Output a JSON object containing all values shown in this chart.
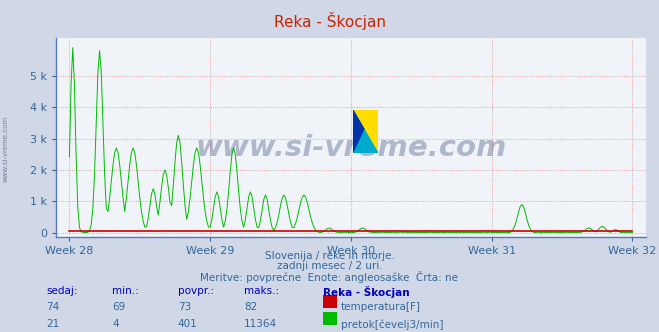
{
  "title": "Reka - Škocjan",
  "bg_color": "#d0d8e8",
  "plot_bg_color": "#f0f4f8",
  "grid_color": "#dd8888",
  "spine_color": "#6688cc",
  "tick_label_color": "#336699",
  "subtitle_lines": [
    "Slovenija / reke in morje.",
    "zadnji mesec / 2 uri.",
    "Meritve: povprečne  Enote: angleosaške  Črta: ne"
  ],
  "footer_headers": [
    "sedaj:",
    "min.:",
    "povpr.:",
    "maks.:",
    "Reka - Škocjan"
  ],
  "footer_row1": [
    "74",
    "69",
    "73",
    "82"
  ],
  "footer_row2": [
    "21",
    "4",
    "401",
    "11364"
  ],
  "footer_label1": "temperatura[F]",
  "footer_label2": "pretok[čevelj3/min]",
  "color_temp": "#cc0000",
  "color_flow": "#00bb00",
  "color_spine": "#5577bb",
  "xlabel_color": "#336699",
  "ylabel_left_color": "#336699",
  "week_labels": [
    "Week 28",
    "Week 29",
    "Week 30",
    "Week 31",
    "Week 32"
  ],
  "week_positions": [
    0,
    84,
    168,
    252,
    336
  ],
  "yticks": [
    0,
    1000,
    2000,
    3000,
    4000,
    5000
  ],
  "ylim": [
    -150,
    6200
  ],
  "xlim": [
    -8,
    344
  ],
  "n_points": 337,
  "watermark": "www.si-vreme.com",
  "watermark_color": "#1a3060",
  "watermark_alpha": 0.3
}
